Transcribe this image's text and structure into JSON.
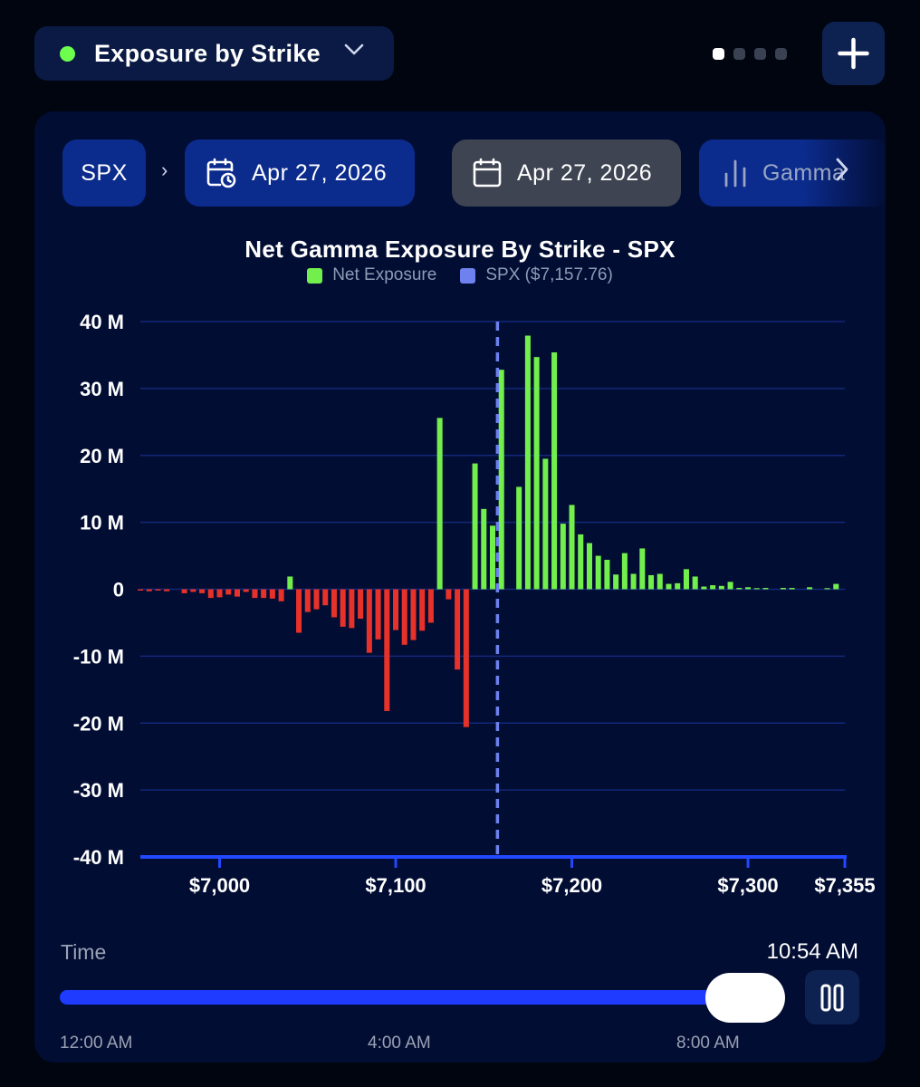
{
  "header": {
    "view_selector_label": "Exposure by Strike",
    "status_color": "#6dff4e",
    "pager": {
      "pages": 4,
      "active": 0
    },
    "add_icon": "plus-icon"
  },
  "filters": {
    "ticker": "SPX",
    "separator": "›",
    "expiration_date": "Apr 27, 2026",
    "expiration_icon": "calendar-clock-icon",
    "as_of_date": "Apr 27, 2026",
    "as_of_icon": "calendar-icon",
    "metric": "Gamma",
    "metric_icon": "bar-chart-icon",
    "more_icon": "chevron-right-icon"
  },
  "chart_data": {
    "type": "bar",
    "title": "Net Gamma Exposure By Strike - SPX",
    "legend": [
      {
        "label": "Net Exposure",
        "color": "#72ee4d"
      },
      {
        "label": "SPX ($7,157.76)",
        "color": "#6d82ee"
      }
    ],
    "spot": 7157.76,
    "xlim": [
      6955,
      7355
    ],
    "ylim": [
      -40,
      40
    ],
    "y_unit": "M",
    "yticks": [
      "40 M",
      "30 M",
      "20 M",
      "10 M",
      "0",
      "-10 M",
      "-20 M",
      "-30 M",
      "-40 M"
    ],
    "xticks": [
      {
        "value": 7000,
        "label": "$7,000"
      },
      {
        "value": 7100,
        "label": "$7,100"
      },
      {
        "value": 7200,
        "label": "$7,200"
      },
      {
        "value": 7300,
        "label": "$7,300"
      },
      {
        "value": 7355,
        "label": "$7,355"
      }
    ],
    "positive_color": "#72ee4d",
    "negative_color": "#e6322a",
    "spot_color": "#6d82ee",
    "grid": true,
    "strikes": [
      6955,
      6960,
      6965,
      6970,
      6975,
      6980,
      6985,
      6990,
      6995,
      7000,
      7005,
      7010,
      7015,
      7020,
      7025,
      7030,
      7035,
      7040,
      7045,
      7050,
      7055,
      7060,
      7065,
      7070,
      7075,
      7080,
      7085,
      7090,
      7095,
      7100,
      7105,
      7110,
      7115,
      7120,
      7125,
      7130,
      7135,
      7140,
      7145,
      7150,
      7155,
      7160,
      7165,
      7170,
      7175,
      7180,
      7185,
      7190,
      7195,
      7200,
      7205,
      7210,
      7215,
      7220,
      7225,
      7230,
      7235,
      7240,
      7245,
      7250,
      7255,
      7260,
      7265,
      7270,
      7275,
      7280,
      7285,
      7290,
      7295,
      7300,
      7305,
      7310,
      7315,
      7320,
      7325,
      7330,
      7335,
      7340,
      7345,
      7350,
      7355
    ],
    "values": [
      -0.2,
      -0.3,
      -0.2,
      -0.3,
      0,
      -0.6,
      -0.4,
      -0.6,
      -1.3,
      -1.2,
      -0.8,
      -1.1,
      -0.4,
      -1.3,
      -1.3,
      -1.4,
      -1.8,
      1.9,
      -6.5,
      -3.4,
      -3,
      -2.4,
      -4.2,
      -5.6,
      -5.8,
      -4.4,
      -9.5,
      -7.5,
      -18.2,
      -6.1,
      -8.3,
      -7.6,
      -6.2,
      -5,
      25.6,
      -1.5,
      -12,
      -20.6,
      18.8,
      12,
      9.5,
      32.8,
      0,
      15.3,
      37.9,
      34.7,
      19.5,
      35.4,
      9.8,
      12.6,
      8.2,
      6.9,
      5,
      4.4,
      2.2,
      5.4,
      2.3,
      6.1,
      2.1,
      2.3,
      0.8,
      0.9,
      3,
      1.9,
      0.4,
      0.6,
      0.5,
      1.1,
      0.2,
      0.3,
      0.1,
      0.2,
      0,
      0.2,
      0.2,
      0,
      0.3,
      0,
      0.1,
      0.8,
      0
    ]
  },
  "time": {
    "label": "Time",
    "current": "10:54 AM",
    "progress": 0.93,
    "ticks": [
      "12:00 AM",
      "4:00 AM",
      "8:00 AM"
    ],
    "pause_icon": "pause-icon"
  }
}
